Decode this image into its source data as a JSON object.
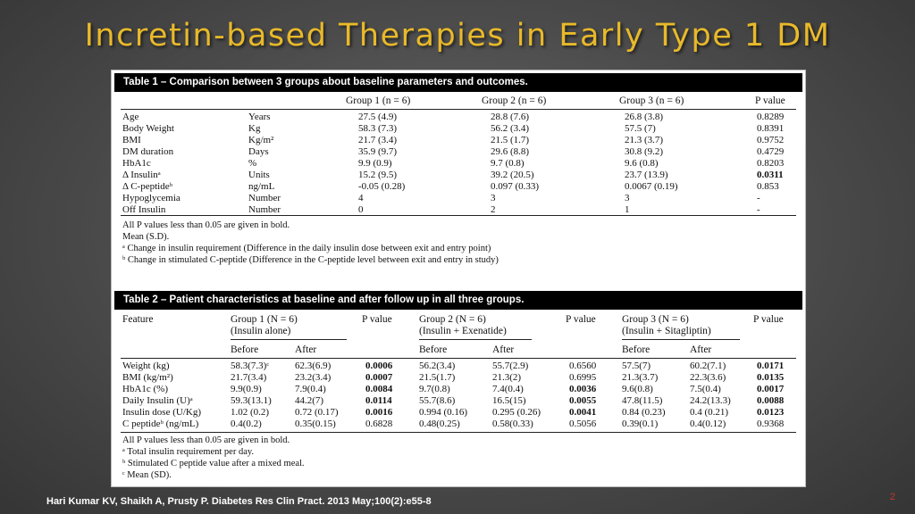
{
  "slide": {
    "title": "Incretin-based Therapies in Early Type 1 DM",
    "citation": "Hari Kumar KV, Shaikh A, Prusty P. Diabetes Res Clin Pract. 2013 May;100(2):e55-8",
    "page_number": "2"
  },
  "table1": {
    "caption": "Table 1 – Comparison between 3 groups about baseline parameters and outcomes.",
    "headers": [
      "Group 1 (n = 6)",
      "Group 2 (n = 6)",
      "Group 3 (n = 6)",
      "P value"
    ],
    "rows": [
      {
        "param": "Age",
        "unit": "Years",
        "g1": "27.5 (4.9)",
        "g2": "28.8 (7.6)",
        "g3": "26.8 (3.8)",
        "p": "0.8289"
      },
      {
        "param": "Body Weight",
        "unit": "Kg",
        "g1": "58.3 (7.3)",
        "g2": "56.2 (3.4)",
        "g3": "57.5 (7)",
        "p": "0.8391"
      },
      {
        "param": "BMI",
        "unit": "Kg/m²",
        "g1": "21.7 (3.4)",
        "g2": "21.5 (1.7)",
        "g3": "21.3 (3.7)",
        "p": "0.9752"
      },
      {
        "param": "DM duration",
        "unit": "Days",
        "g1": "35.9 (9.7)",
        "g2": "29.6 (8.8)",
        "g3": "30.8 (9.2)",
        "p": "0.4729"
      },
      {
        "param": "HbA1c",
        "unit": "%",
        "g1": "9.9 (0.9)",
        "g2": "9.7 (0.8)",
        "g3": "9.6 (0.8)",
        "p": "0.8203"
      },
      {
        "param": "Δ Insulinᵃ",
        "unit": "Units",
        "g1": "15.2 (9.5)",
        "g2": "39.2 (20.5)",
        "g3": "23.7 (13.9)",
        "p": "0.0311"
      },
      {
        "param": "Δ C-peptideᵇ",
        "unit": "ng/mL",
        "g1": "-0.05 (0.28)",
        "g2": "0.097 (0.33)",
        "g3": "0.0067 (0.19)",
        "p": "0.853"
      },
      {
        "param": "Hypoglycemia",
        "unit": "Number",
        "g1": "4",
        "g2": "3",
        "g3": "3",
        "p": "-"
      },
      {
        "param": "Off Insulin",
        "unit": "Number",
        "g1": "0",
        "g2": "2",
        "g3": "1",
        "p": "-"
      }
    ],
    "notes": [
      "All P values less than 0.05 are given in bold.",
      "Mean (S.D).",
      "ᵃ  Change in insulin requirement (Difference in the daily insulin dose between exit and entry point)",
      "ᵇ  Change in stimulated C-peptide (Difference in the C-peptide level between exit and entry in study)"
    ]
  },
  "table2": {
    "caption": "Table 2 – Patient characteristics at baseline and after follow up in all three groups.",
    "feature_header": "Feature",
    "p_header": "P value",
    "groups": [
      {
        "name": "Group 1 (N = 6)",
        "sub": "(Insulin alone)"
      },
      {
        "name": "Group 2 (N = 6)",
        "sub": "(Insulin + Exenatide)"
      },
      {
        "name": "Group 3 (N = 6)",
        "sub": "(Insulin + Sitagliptin)"
      }
    ],
    "before_label": "Before",
    "after_label": "After",
    "rows": [
      {
        "feature": "Weight (kg)",
        "g1b": "58.3(7.3)ᶜ",
        "g1a": "62.3(6.9)",
        "p1": "0.0006",
        "g2b": "56.2(3.4)",
        "g2a": "55.7(2.9)",
        "p2": "0.6560",
        "g3b": "57.5(7)",
        "g3a": "60.2(7.1)",
        "p3": "0.0171"
      },
      {
        "feature": "BMI (kg/m²)",
        "g1b": "21.7(3.4)",
        "g1a": "23.2(3.4)",
        "p1": "0.0007",
        "g2b": "21.5(1.7)",
        "g2a": "21.3(2)",
        "p2": "0.6995",
        "g3b": "21.3(3.7)",
        "g3a": "22.3(3.6)",
        "p3": "0.0135"
      },
      {
        "feature": "HbA1c (%)",
        "g1b": "9.9(0.9)",
        "g1a": "7.9(0.4)",
        "p1": "0.0084",
        "g2b": "9.7(0.8)",
        "g2a": "7.4(0.4)",
        "p2": "0.0036",
        "g3b": "9.6(0.8)",
        "g3a": "7.5(0.4)",
        "p3": "0.0017"
      },
      {
        "feature": "Daily Insulin (U)ᵃ",
        "g1b": "59.3(13.1)",
        "g1a": "44.2(7)",
        "p1": "0.0114",
        "g2b": "55.7(8.6)",
        "g2a": "16.5(15)",
        "p2": "0.0055",
        "g3b": "47.8(11.5)",
        "g3a": "24.2(13.3)",
        "p3": "0.0088"
      },
      {
        "feature": "Insulin dose (U/Kg)",
        "g1b": "1.02 (0.2)",
        "g1a": "0.72 (0.17)",
        "p1": "0.0016",
        "g2b": "0.994 (0.16)",
        "g2a": "0.295 (0.26)",
        "p2": "0.0041",
        "g3b": "0.84 (0.23)",
        "g3a": "0.4 (0.21)",
        "p3": "0.0123"
      },
      {
        "feature": "C peptideᵇ (ng/mL)",
        "g1b": "0.4(0.2)",
        "g1a": "0.35(0.15)",
        "p1": "0.6828",
        "g2b": "0.48(0.25)",
        "g2a": "0.58(0.33)",
        "p2": "0.5056",
        "g3b": "0.39(0.1)",
        "g3a": "0.4(0.12)",
        "p3": "0.9368"
      }
    ],
    "notes": [
      "All P values less than 0.05 are given in bold.",
      "ᵃ  Total insulin requirement per day.",
      "ᵇ  Stimulated C peptide value after a mixed meal.",
      "ᶜ  Mean (SD)."
    ]
  }
}
